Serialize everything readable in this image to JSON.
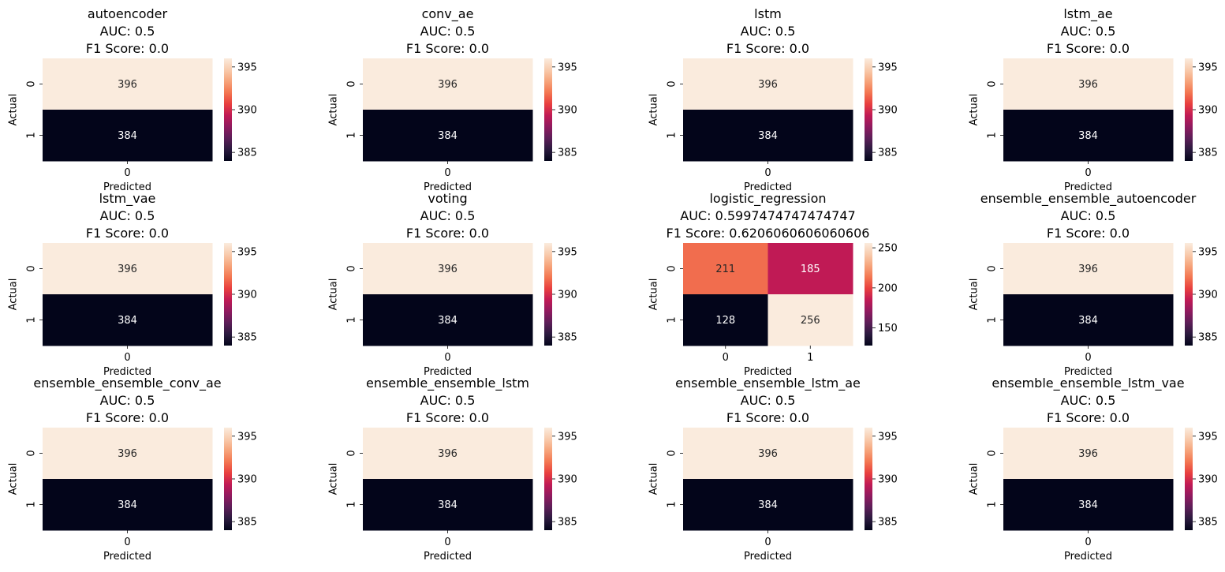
{
  "chart_data": [
    {
      "type": "heatmap",
      "title": "autoencoder",
      "auc_label": "AUC: 0.5",
      "f1_label": "F1 Score: 0.0",
      "xlabel": "Predicted",
      "ylabel": "Actual",
      "x_ticks": [
        "0"
      ],
      "y_ticks": [
        "0",
        "1"
      ],
      "values": [
        [
          396
        ],
        [
          384
        ]
      ],
      "colorbar_range": [
        384,
        396
      ],
      "colorbar_ticks": [
        385,
        390,
        395
      ]
    },
    {
      "type": "heatmap",
      "title": "conv_ae",
      "auc_label": "AUC: 0.5",
      "f1_label": "F1 Score: 0.0",
      "xlabel": "Predicted",
      "ylabel": "Actual",
      "x_ticks": [
        "0"
      ],
      "y_ticks": [
        "0",
        "1"
      ],
      "values": [
        [
          396
        ],
        [
          384
        ]
      ],
      "colorbar_range": [
        384,
        396
      ],
      "colorbar_ticks": [
        385,
        390,
        395
      ]
    },
    {
      "type": "heatmap",
      "title": "lstm",
      "auc_label": "AUC: 0.5",
      "f1_label": "F1 Score: 0.0",
      "xlabel": "Predicted",
      "ylabel": "Actual",
      "x_ticks": [
        "0"
      ],
      "y_ticks": [
        "0",
        "1"
      ],
      "values": [
        [
          396
        ],
        [
          384
        ]
      ],
      "colorbar_range": [
        384,
        396
      ],
      "colorbar_ticks": [
        385,
        390,
        395
      ]
    },
    {
      "type": "heatmap",
      "title": "lstm_ae",
      "auc_label": "AUC: 0.5",
      "f1_label": "F1 Score: 0.0",
      "xlabel": "Predicted",
      "ylabel": "Actual",
      "x_ticks": [
        "0"
      ],
      "y_ticks": [
        "0",
        "1"
      ],
      "values": [
        [
          396
        ],
        [
          384
        ]
      ],
      "colorbar_range": [
        384,
        396
      ],
      "colorbar_ticks": [
        385,
        390,
        395
      ]
    },
    {
      "type": "heatmap",
      "title": "lstm_vae",
      "auc_label": "AUC: 0.5",
      "f1_label": "F1 Score: 0.0",
      "xlabel": "Predicted",
      "ylabel": "Actual",
      "x_ticks": [
        "0"
      ],
      "y_ticks": [
        "0",
        "1"
      ],
      "values": [
        [
          396
        ],
        [
          384
        ]
      ],
      "colorbar_range": [
        384,
        396
      ],
      "colorbar_ticks": [
        385,
        390,
        395
      ]
    },
    {
      "type": "heatmap",
      "title": "voting",
      "auc_label": "AUC: 0.5",
      "f1_label": "F1 Score: 0.0",
      "xlabel": "Predicted",
      "ylabel": "Actual",
      "x_ticks": [
        "0"
      ],
      "y_ticks": [
        "0",
        "1"
      ],
      "values": [
        [
          396
        ],
        [
          384
        ]
      ],
      "colorbar_range": [
        384,
        396
      ],
      "colorbar_ticks": [
        385,
        390,
        395
      ]
    },
    {
      "type": "heatmap",
      "title": "logistic_regression",
      "auc_label": "AUC: 0.5997474747474747",
      "f1_label": "F1 Score: 0.6206060606060606",
      "xlabel": "Predicted",
      "ylabel": "Actual",
      "x_ticks": [
        "0",
        "1"
      ],
      "y_ticks": [
        "0",
        "1"
      ],
      "values": [
        [
          211,
          185
        ],
        [
          128,
          256
        ]
      ],
      "colorbar_range": [
        128,
        256
      ],
      "colorbar_ticks": [
        150,
        200,
        250
      ]
    },
    {
      "type": "heatmap",
      "title": "ensemble_ensemble_autoencoder",
      "auc_label": "AUC: 0.5",
      "f1_label": "F1 Score: 0.0",
      "xlabel": "Predicted",
      "ylabel": "Actual",
      "x_ticks": [
        "0"
      ],
      "y_ticks": [
        "0",
        "1"
      ],
      "values": [
        [
          396
        ],
        [
          384
        ]
      ],
      "colorbar_range": [
        384,
        396
      ],
      "colorbar_ticks": [
        385,
        390,
        395
      ]
    },
    {
      "type": "heatmap",
      "title": "ensemble_ensemble_conv_ae",
      "auc_label": "AUC: 0.5",
      "f1_label": "F1 Score: 0.0",
      "xlabel": "Predicted",
      "ylabel": "Actual",
      "x_ticks": [
        "0"
      ],
      "y_ticks": [
        "0",
        "1"
      ],
      "values": [
        [
          396
        ],
        [
          384
        ]
      ],
      "colorbar_range": [
        384,
        396
      ],
      "colorbar_ticks": [
        385,
        390,
        395
      ]
    },
    {
      "type": "heatmap",
      "title": "ensemble_ensemble_lstm",
      "auc_label": "AUC: 0.5",
      "f1_label": "F1 Score: 0.0",
      "xlabel": "Predicted",
      "ylabel": "Actual",
      "x_ticks": [
        "0"
      ],
      "y_ticks": [
        "0",
        "1"
      ],
      "values": [
        [
          396
        ],
        [
          384
        ]
      ],
      "colorbar_range": [
        384,
        396
      ],
      "colorbar_ticks": [
        385,
        390,
        395
      ]
    },
    {
      "type": "heatmap",
      "title": "ensemble_ensemble_lstm_ae",
      "auc_label": "AUC: 0.5",
      "f1_label": "F1 Score: 0.0",
      "xlabel": "Predicted",
      "ylabel": "Actual",
      "x_ticks": [
        "0"
      ],
      "y_ticks": [
        "0",
        "1"
      ],
      "values": [
        [
          396
        ],
        [
          384
        ]
      ],
      "colorbar_range": [
        384,
        396
      ],
      "colorbar_ticks": [
        385,
        390,
        395
      ]
    },
    {
      "type": "heatmap",
      "title": "ensemble_ensemble_lstm_vae",
      "auc_label": "AUC: 0.5",
      "f1_label": "F1 Score: 0.0",
      "xlabel": "Predicted",
      "ylabel": "Actual",
      "x_ticks": [
        "0"
      ],
      "y_ticks": [
        "0",
        "1"
      ],
      "values": [
        [
          396
        ],
        [
          384
        ]
      ],
      "colorbar_range": [
        384,
        396
      ],
      "colorbar_ticks": [
        385,
        390,
        395
      ]
    }
  ],
  "colormap": {
    "name": "rocket",
    "stops": [
      "#03051a",
      "#2b1a3e",
      "#5c1e58",
      "#8f1a5f",
      "#c01a55",
      "#e83f3f",
      "#f37651",
      "#f6a47b",
      "#f8cbad",
      "#faebdd"
    ]
  }
}
